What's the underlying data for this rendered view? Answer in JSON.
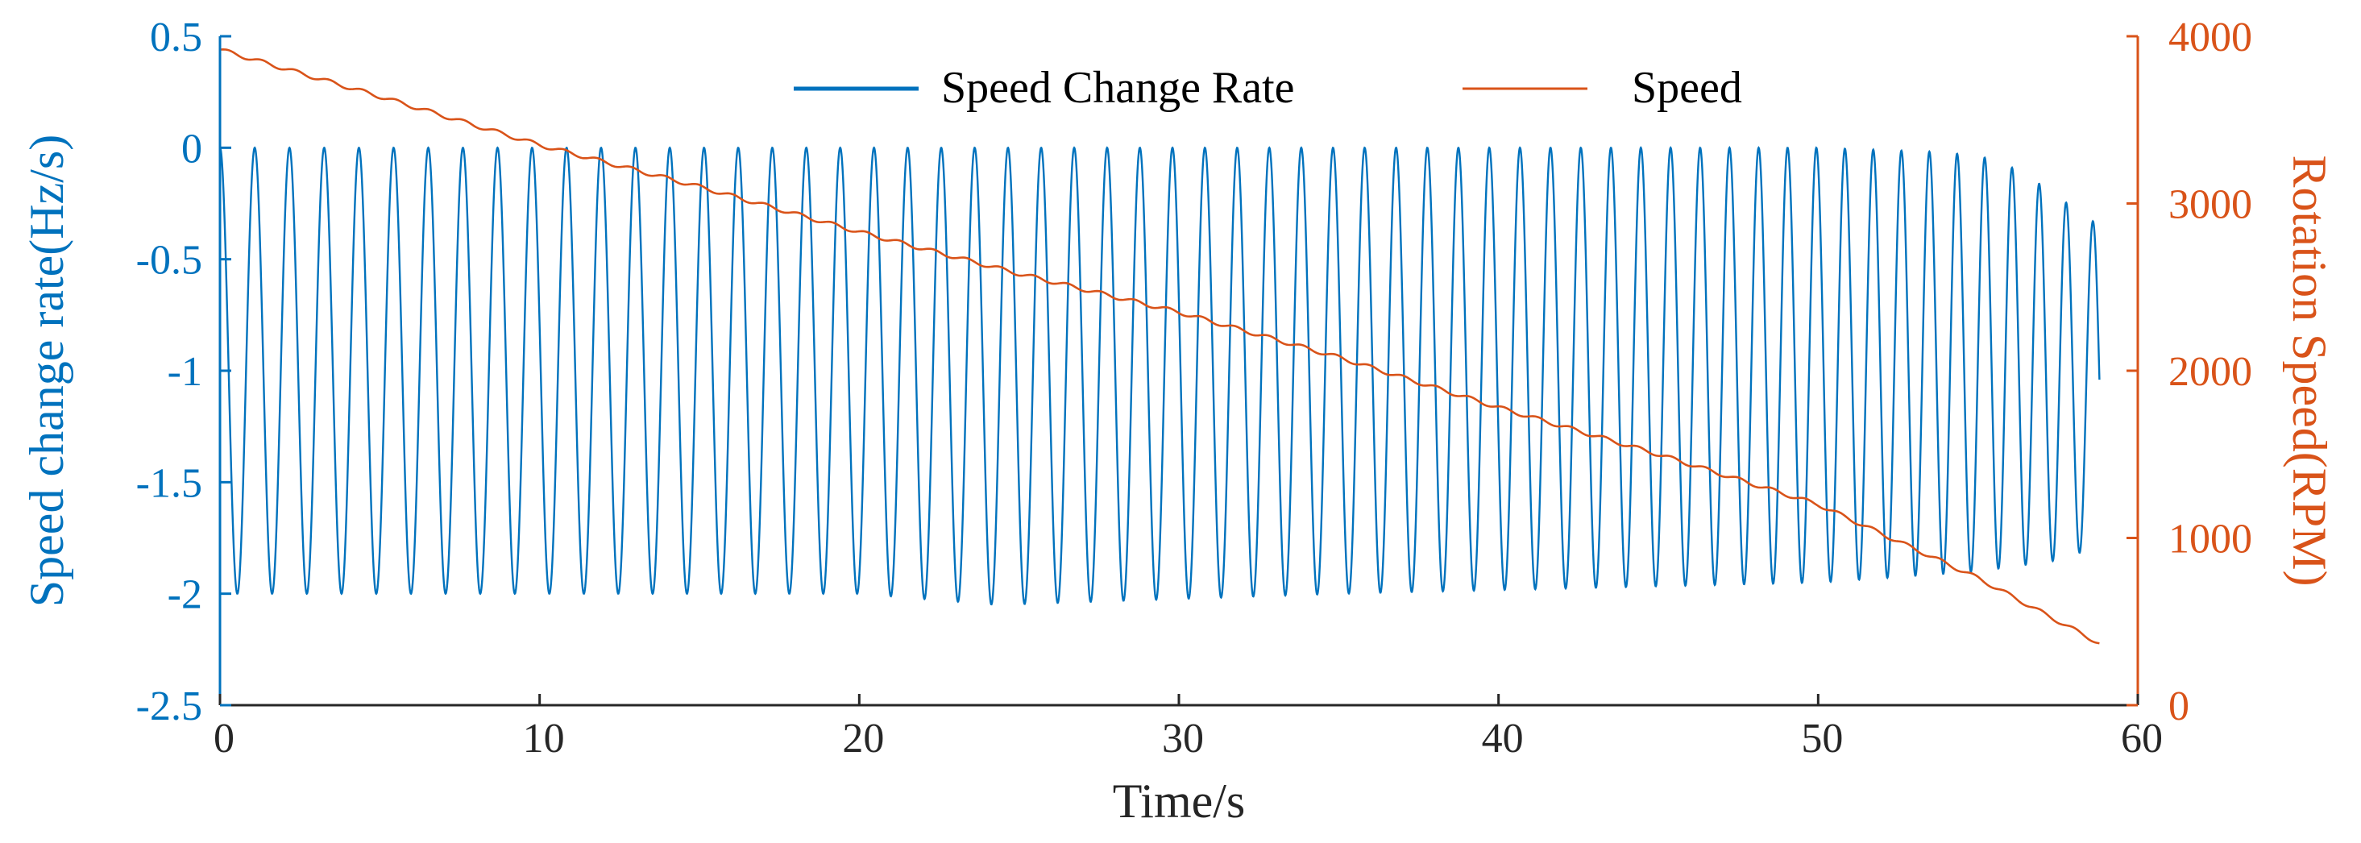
{
  "chart_data": {
    "type": "line",
    "title": "",
    "xlabel": "Time/s",
    "ylabel_left": "Speed change rate(Hz/s)",
    "ylabel_right": "Rotation Speed(RPM)",
    "xlim": [
      0,
      60
    ],
    "ylim_left": [
      -2.5,
      0.5
    ],
    "ylim_right": [
      0,
      4000
    ],
    "x_ticks": [
      "0",
      "10",
      "20",
      "30",
      "40",
      "50",
      "60"
    ],
    "y_left_ticks": [
      "0.5",
      "0",
      "-0.5",
      "-1",
      "-1.5",
      "-2",
      "-2.5"
    ],
    "y_right_ticks": [
      "4000",
      "3000",
      "2000",
      "1000",
      "0"
    ],
    "grid": false,
    "legend_position": "top-center",
    "series": [
      {
        "name": "Speed Change Rate",
        "axis": "left",
        "color": "#0072BD",
        "description": "oscillation between 0 and -2 Hz/s, ~62 cycles over 0-58.8 s, period shrinking with time",
        "x_start": 0,
        "x_end": 58.8,
        "peaks": [
          -0.0,
          -0.0,
          -0.0,
          -0.0,
          -0.02,
          -0.05,
          -0.12,
          -0.25,
          -0.35
        ],
        "peak_times": [
          0,
          20,
          40,
          50,
          54,
          55.5,
          56.5,
          57.8,
          58.8
        ],
        "troughs": [
          -2.0,
          -2.0,
          -2.0,
          -2.05,
          -2.0,
          -1.95,
          -1.9,
          -1.85,
          -1.8
        ],
        "trough_times": [
          0,
          10,
          20,
          24.3,
          35,
          50,
          55,
          57.5,
          58.5
        ]
      },
      {
        "name": "Speed",
        "axis": "right",
        "color": "#D95319",
        "x": [
          0,
          5,
          10,
          15,
          20,
          25,
          30,
          35,
          40,
          45,
          50,
          55,
          58.8
        ],
        "values": [
          3920,
          3640,
          3350,
          3100,
          2830,
          2580,
          2350,
          2080,
          1780,
          1500,
          1200,
          760,
          370
        ]
      }
    ]
  }
}
